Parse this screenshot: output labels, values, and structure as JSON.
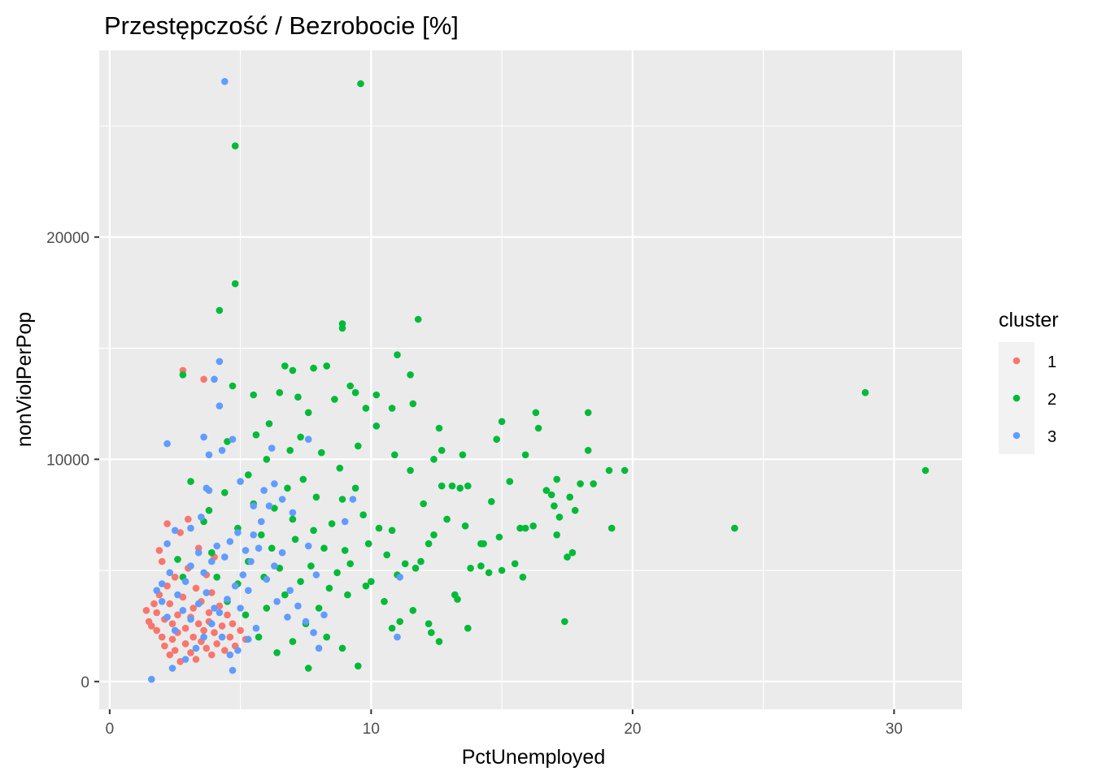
{
  "chart_data": {
    "type": "scatter",
    "title": "Przestępczość / Bezrobocie [%]",
    "xlabel": "PctUnemployed",
    "ylabel": "nonViolPerPop",
    "xlim": [
      -0.4,
      32.6
    ],
    "ylim": [
      -1250,
      28400
    ],
    "x_ticks": [
      0,
      10,
      20,
      30
    ],
    "y_ticks": [
      0,
      10000,
      20000
    ],
    "grid": true,
    "legend": {
      "title": "cluster",
      "position": "right"
    },
    "series": [
      {
        "name": "1",
        "color": "#F8766D",
        "points": [
          [
            1.4,
            3200
          ],
          [
            1.5,
            2700
          ],
          [
            1.6,
            2500
          ],
          [
            1.7,
            3500
          ],
          [
            1.8,
            2300
          ],
          [
            1.8,
            3100
          ],
          [
            1.9,
            3900
          ],
          [
            1.9,
            5900
          ],
          [
            2.0,
            5400
          ],
          [
            2.0,
            2000
          ],
          [
            2.1,
            2800
          ],
          [
            2.1,
            1600
          ],
          [
            2.2,
            7100
          ],
          [
            2.2,
            4300
          ],
          [
            2.3,
            1200
          ],
          [
            2.3,
            3500
          ],
          [
            2.4,
            2600
          ],
          [
            2.4,
            1900
          ],
          [
            2.5,
            4700
          ],
          [
            2.5,
            1400
          ],
          [
            2.6,
            3000
          ],
          [
            2.6,
            2200
          ],
          [
            2.7,
            6700
          ],
          [
            2.7,
            900
          ],
          [
            2.8,
            14000
          ],
          [
            2.8,
            3800
          ],
          [
            2.9,
            2400
          ],
          [
            2.9,
            1700
          ],
          [
            3.0,
            7300
          ],
          [
            3.0,
            5100
          ],
          [
            3.1,
            2900
          ],
          [
            3.1,
            1300
          ],
          [
            3.2,
            3300
          ],
          [
            3.2,
            2000
          ],
          [
            3.3,
            4200
          ],
          [
            3.3,
            1000
          ],
          [
            3.4,
            2600
          ],
          [
            3.4,
            6000
          ],
          [
            3.5,
            1800
          ],
          [
            3.5,
            3600
          ],
          [
            3.6,
            13600
          ],
          [
            3.6,
            2300
          ],
          [
            3.7,
            4800
          ],
          [
            3.7,
            1500
          ],
          [
            3.8,
            3100
          ],
          [
            3.8,
            2700
          ],
          [
            3.9,
            1200
          ],
          [
            3.9,
            4000
          ],
          [
            4.0,
            2200
          ],
          [
            4.0,
            5600
          ],
          [
            4.1,
            1700
          ],
          [
            4.2,
            3400
          ],
          [
            4.3,
            2500
          ],
          [
            4.4,
            1400
          ],
          [
            4.5,
            3000
          ],
          [
            4.6,
            2000
          ],
          [
            4.7,
            2600
          ],
          [
            4.8,
            1600
          ],
          [
            5.0,
            2300
          ],
          [
            5.2,
            1900
          ]
        ]
      },
      {
        "name": "2",
        "color": "#00BA38",
        "points": [
          [
            9.6,
            26900
          ],
          [
            4.8,
            24100
          ],
          [
            4.8,
            17900
          ],
          [
            4.2,
            16700
          ],
          [
            8.9,
            16100
          ],
          [
            8.9,
            15900
          ],
          [
            11.8,
            16300
          ],
          [
            11.0,
            14700
          ],
          [
            6.7,
            14200
          ],
          [
            7.0,
            14000
          ],
          [
            7.8,
            14100
          ],
          [
            8.3,
            14200
          ],
          [
            4.7,
            13300
          ],
          [
            9.2,
            13300
          ],
          [
            9.4,
            13000
          ],
          [
            11.5,
            13800
          ],
          [
            2.8,
            13800
          ],
          [
            5.5,
            12900
          ],
          [
            6.5,
            13000
          ],
          [
            7.2,
            12800
          ],
          [
            8.6,
            12700
          ],
          [
            10.2,
            12900
          ],
          [
            10.8,
            12300
          ],
          [
            11.6,
            12500
          ],
          [
            12.6,
            11400
          ],
          [
            15.0,
            11700
          ],
          [
            16.3,
            12100
          ],
          [
            18.3,
            12100
          ],
          [
            16.4,
            11400
          ],
          [
            14.8,
            10900
          ],
          [
            12.7,
            10400
          ],
          [
            13.5,
            10200
          ],
          [
            15.9,
            10200
          ],
          [
            18.3,
            10400
          ],
          [
            19.1,
            9500
          ],
          [
            19.7,
            9500
          ],
          [
            17.1,
            9100
          ],
          [
            16.9,
            8400
          ],
          [
            17.6,
            8300
          ],
          [
            18.0,
            8900
          ],
          [
            15.3,
            9000
          ],
          [
            14.6,
            8100
          ],
          [
            17.0,
            7900
          ],
          [
            17.8,
            7700
          ],
          [
            17.2,
            7400
          ],
          [
            15.7,
            6900
          ],
          [
            15.9,
            6900
          ],
          [
            17.1,
            6600
          ],
          [
            14.2,
            6200
          ],
          [
            14.9,
            6500
          ],
          [
            13.1,
            8800
          ],
          [
            13.7,
            8800
          ],
          [
            12.7,
            8800
          ],
          [
            13.6,
            7000
          ],
          [
            19.2,
            6900
          ],
          [
            23.9,
            6900
          ],
          [
            28.9,
            13000
          ],
          [
            31.2,
            9500
          ],
          [
            17.5,
            5600
          ],
          [
            17.7,
            5800
          ],
          [
            15.5,
            5300
          ],
          [
            15.8,
            4700
          ],
          [
            15.0,
            5000
          ],
          [
            14.2,
            5200
          ],
          [
            14.5,
            4900
          ],
          [
            13.8,
            5100
          ],
          [
            13.3,
            3700
          ],
          [
            13.2,
            3900
          ],
          [
            13.7,
            2400
          ],
          [
            12.6,
            1800
          ],
          [
            12.3,
            2200
          ],
          [
            12.2,
            2600
          ],
          [
            17.4,
            2700
          ],
          [
            11.6,
            3200
          ],
          [
            11.1,
            2700
          ],
          [
            10.8,
            2400
          ],
          [
            9.5,
            700
          ],
          [
            7.6,
            600
          ],
          [
            8.9,
            1500
          ],
          [
            8.3,
            2000
          ],
          [
            3.1,
            9000
          ],
          [
            2.8,
            4700
          ],
          [
            2.6,
            5500
          ],
          [
            3.6,
            7200
          ],
          [
            4.5,
            10800
          ],
          [
            5.3,
            9300
          ],
          [
            6.0,
            10000
          ],
          [
            7.3,
            11000
          ],
          [
            8.1,
            10300
          ],
          [
            9.5,
            10600
          ],
          [
            10.2,
            11500
          ],
          [
            10.9,
            10200
          ],
          [
            11.5,
            9500
          ],
          [
            12.0,
            8000
          ],
          [
            12.9,
            7300
          ],
          [
            12.4,
            6600
          ],
          [
            11.9,
            5400
          ],
          [
            11.0,
            4800
          ],
          [
            10.5,
            3600
          ],
          [
            9.8,
            4300
          ],
          [
            9.0,
            5900
          ],
          [
            8.5,
            7100
          ],
          [
            7.9,
            8300
          ],
          [
            7.4,
            9100
          ],
          [
            6.8,
            8700
          ],
          [
            6.3,
            7800
          ],
          [
            5.8,
            6600
          ],
          [
            5.3,
            5400
          ],
          [
            4.9,
            4400
          ],
          [
            4.5,
            3600
          ],
          [
            9.2,
            5300
          ],
          [
            8.7,
            4900
          ],
          [
            9.9,
            6200
          ],
          [
            10.6,
            5700
          ],
          [
            7.7,
            5200
          ],
          [
            8.2,
            6000
          ],
          [
            6.5,
            5100
          ],
          [
            7.1,
            6400
          ],
          [
            5.9,
            4700
          ],
          [
            10.3,
            6900
          ],
          [
            9.4,
            8700
          ],
          [
            8.8,
            9600
          ],
          [
            6.9,
            10400
          ],
          [
            6.1,
            11600
          ],
          [
            5.6,
            11100
          ],
          [
            7.6,
            12100
          ],
          [
            9.8,
            12300
          ],
          [
            6.0,
            3300
          ],
          [
            6.7,
            3900
          ],
          [
            7.5,
            2600
          ],
          [
            8.0,
            3300
          ],
          [
            5.2,
            3000
          ],
          [
            5.7,
            2000
          ],
          [
            6.4,
            1300
          ],
          [
            7.0,
            1800
          ],
          [
            11.3,
            5300
          ],
          [
            10.0,
            4500
          ],
          [
            9.1,
            3900
          ],
          [
            8.4,
            4200
          ],
          [
            7.3,
            4500
          ],
          [
            12.2,
            6200
          ],
          [
            11.7,
            5100
          ],
          [
            10.8,
            6800
          ],
          [
            9.7,
            7500
          ],
          [
            8.9,
            8200
          ],
          [
            7.8,
            6800
          ],
          [
            7.0,
            7300
          ],
          [
            6.2,
            6000
          ],
          [
            5.5,
            8000
          ],
          [
            4.9,
            6900
          ],
          [
            4.4,
            8500
          ],
          [
            3.8,
            7700
          ],
          [
            3.9,
            5800
          ],
          [
            4.1,
            4700
          ],
          [
            13.4,
            8700
          ],
          [
            14.3,
            6200
          ],
          [
            16.2,
            7000
          ],
          [
            18.5,
            8900
          ],
          [
            16.7,
            8600
          ],
          [
            12.4,
            10000
          ]
        ]
      },
      {
        "name": "3",
        "color": "#619CFF",
        "points": [
          [
            4.4,
            27000
          ],
          [
            4.2,
            14400
          ],
          [
            4.0,
            13600
          ],
          [
            4.2,
            12400
          ],
          [
            2.2,
            10700
          ],
          [
            3.6,
            11000
          ],
          [
            3.8,
            10200
          ],
          [
            4.3,
            10400
          ],
          [
            4.7,
            10900
          ],
          [
            7.6,
            10900
          ],
          [
            3.7,
            8700
          ],
          [
            3.8,
            8600
          ],
          [
            3.5,
            7400
          ],
          [
            3.1,
            6900
          ],
          [
            2.5,
            6800
          ],
          [
            2.2,
            6200
          ],
          [
            1.8,
            4100
          ],
          [
            2.0,
            4400
          ],
          [
            2.3,
            4900
          ],
          [
            2.6,
            3900
          ],
          [
            2.9,
            4500
          ],
          [
            3.1,
            5200
          ],
          [
            3.4,
            5800
          ],
          [
            3.6,
            4900
          ],
          [
            3.9,
            5400
          ],
          [
            4.1,
            6100
          ],
          [
            4.4,
            5600
          ],
          [
            4.6,
            6300
          ],
          [
            4.9,
            6700
          ],
          [
            5.2,
            5900
          ],
          [
            5.5,
            6600
          ],
          [
            5.8,
            7200
          ],
          [
            6.1,
            7900
          ],
          [
            6.6,
            8200
          ],
          [
            7.0,
            7600
          ],
          [
            5.9,
            8600
          ],
          [
            6.3,
            8900
          ],
          [
            5.5,
            7900
          ],
          [
            1.6,
            100
          ],
          [
            2.4,
            600
          ],
          [
            4.7,
            500
          ],
          [
            2.9,
            1000
          ],
          [
            3.3,
            1500
          ],
          [
            3.6,
            2000
          ],
          [
            3.9,
            2600
          ],
          [
            4.2,
            3100
          ],
          [
            4.5,
            3700
          ],
          [
            4.8,
            4300
          ],
          [
            5.1,
            4800
          ],
          [
            5.4,
            5400
          ],
          [
            5.7,
            6000
          ],
          [
            6.0,
            4600
          ],
          [
            6.3,
            5200
          ],
          [
            6.6,
            5800
          ],
          [
            6.9,
            4100
          ],
          [
            7.2,
            3400
          ],
          [
            7.5,
            2700
          ],
          [
            7.8,
            2200
          ],
          [
            8.0,
            1500
          ],
          [
            8.2,
            3000
          ],
          [
            7.9,
            4800
          ],
          [
            7.6,
            6100
          ],
          [
            6.4,
            3600
          ],
          [
            6.8,
            2900
          ],
          [
            5.6,
            2400
          ],
          [
            5.3,
            1900
          ],
          [
            4.9,
            1400
          ],
          [
            4.6,
            1200
          ],
          [
            4.3,
            2000
          ],
          [
            4.0,
            3300
          ],
          [
            3.7,
            4000
          ],
          [
            3.4,
            3500
          ],
          [
            3.1,
            2800
          ],
          [
            2.8,
            3200
          ],
          [
            2.5,
            2300
          ],
          [
            2.2,
            2900
          ],
          [
            2.0,
            3600
          ],
          [
            5.0,
            3300
          ],
          [
            5.3,
            4100
          ],
          [
            11.1,
            4700
          ],
          [
            11.0,
            2000
          ],
          [
            9.3,
            8200
          ],
          [
            9.0,
            7200
          ],
          [
            6.2,
            10500
          ],
          [
            5.0,
            9000
          ]
        ]
      }
    ]
  }
}
